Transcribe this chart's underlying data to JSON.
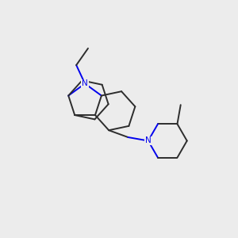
{
  "background_color": "#ececec",
  "bond_color": "#2d2d2d",
  "nitrogen_color": "#0000ee",
  "line_width": 1.4,
  "figsize": [
    3.0,
    3.0
  ],
  "dpi": 100,
  "N9": [
    0.37,
    0.635
  ],
  "bl": 0.078
}
